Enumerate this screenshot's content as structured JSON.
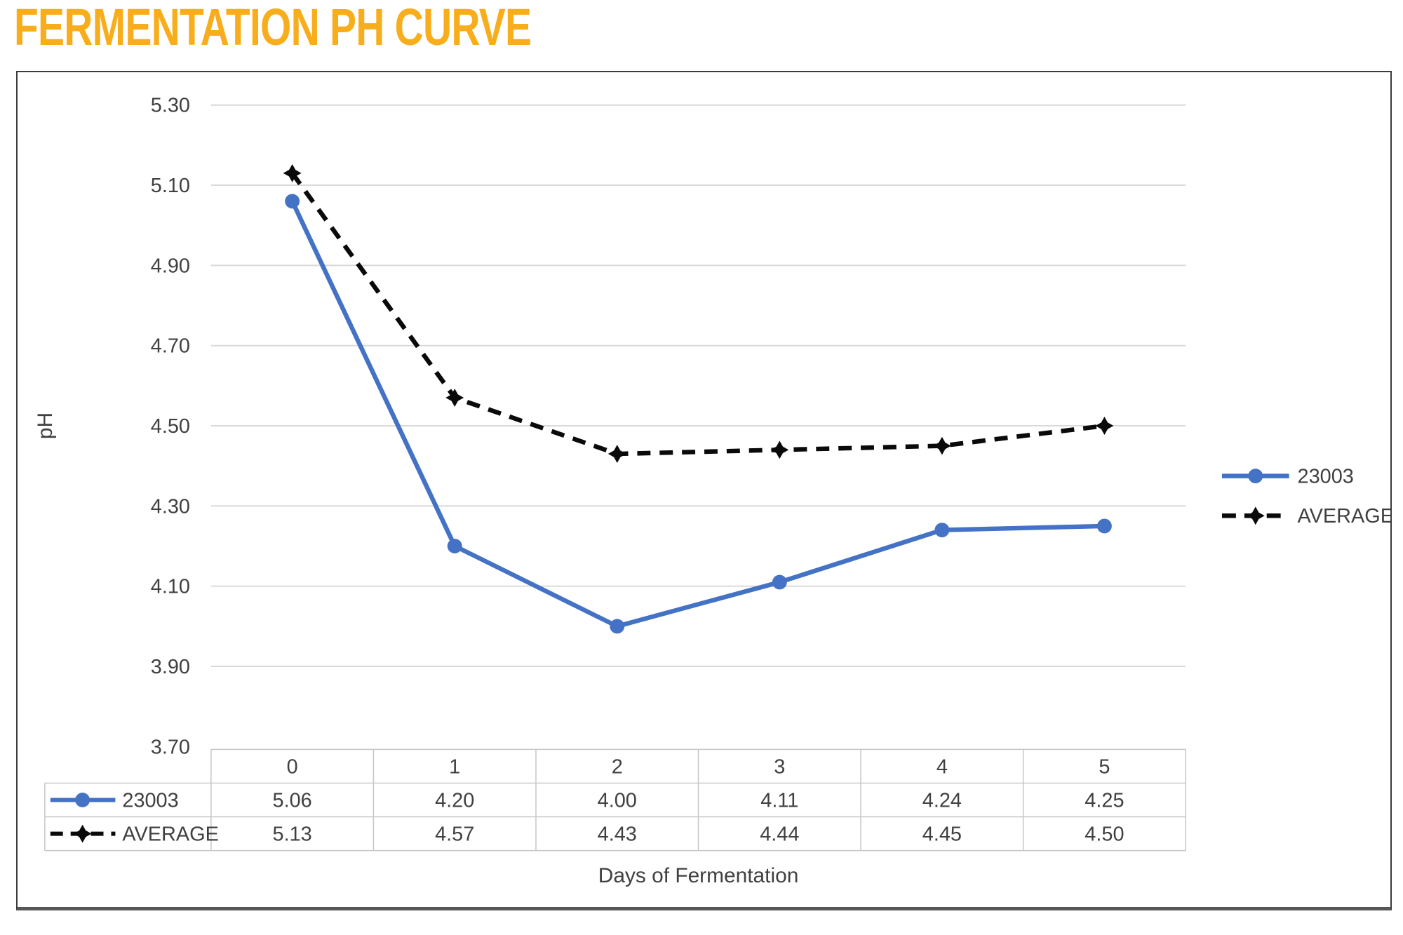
{
  "title": "FERMENTATION PH CURVE",
  "colors": {
    "title": "#F8AE1C",
    "series_23003": "#4472C4",
    "series_average": "#0a0a0a",
    "gridline": "#D9D9D9",
    "text": "#404040",
    "table_border": "#C6C6C6",
    "frame_border": "#3c3c3c"
  },
  "axes": {
    "x_title": "Days of Fermentation",
    "y_title": "pH"
  },
  "chart_data": {
    "type": "line",
    "title": "FERMENTATION PH CURVE",
    "xlabel": "Days of Fermentation",
    "ylabel": "pH",
    "categories": [
      "0",
      "1",
      "2",
      "3",
      "4",
      "5"
    ],
    "series": [
      {
        "name": "23003",
        "values": [
          5.06,
          4.2,
          4.0,
          4.11,
          4.24,
          4.25
        ],
        "color": "#4472C4",
        "style": "solid",
        "marker": "circle"
      },
      {
        "name": "AVERAGE",
        "values": [
          5.13,
          4.57,
          4.43,
          4.44,
          4.45,
          4.5
        ],
        "color": "#0a0a0a",
        "style": "dashed",
        "marker": "star"
      }
    ],
    "ylim": [
      3.7,
      5.3
    ],
    "ytick_step": 0.2,
    "ytick_labels": [
      "5.30",
      "5.10",
      "4.90",
      "4.70",
      "4.50",
      "4.30",
      "4.10",
      "3.90",
      "3.70"
    ],
    "grid": "horizontal",
    "legend_position": "right",
    "data_table_shown": true
  },
  "legend": {
    "items": [
      {
        "label": "23003"
      },
      {
        "label": "AVERAGE"
      }
    ]
  },
  "table": {
    "header": [
      "0",
      "1",
      "2",
      "3",
      "4",
      "5"
    ],
    "rows": [
      {
        "label": "23003",
        "values": [
          "5.06",
          "4.20",
          "4.00",
          "4.11",
          "4.24",
          "4.25"
        ]
      },
      {
        "label": "AVERAGE",
        "values": [
          "5.13",
          "4.57",
          "4.43",
          "4.44",
          "4.45",
          "4.50"
        ]
      }
    ]
  }
}
